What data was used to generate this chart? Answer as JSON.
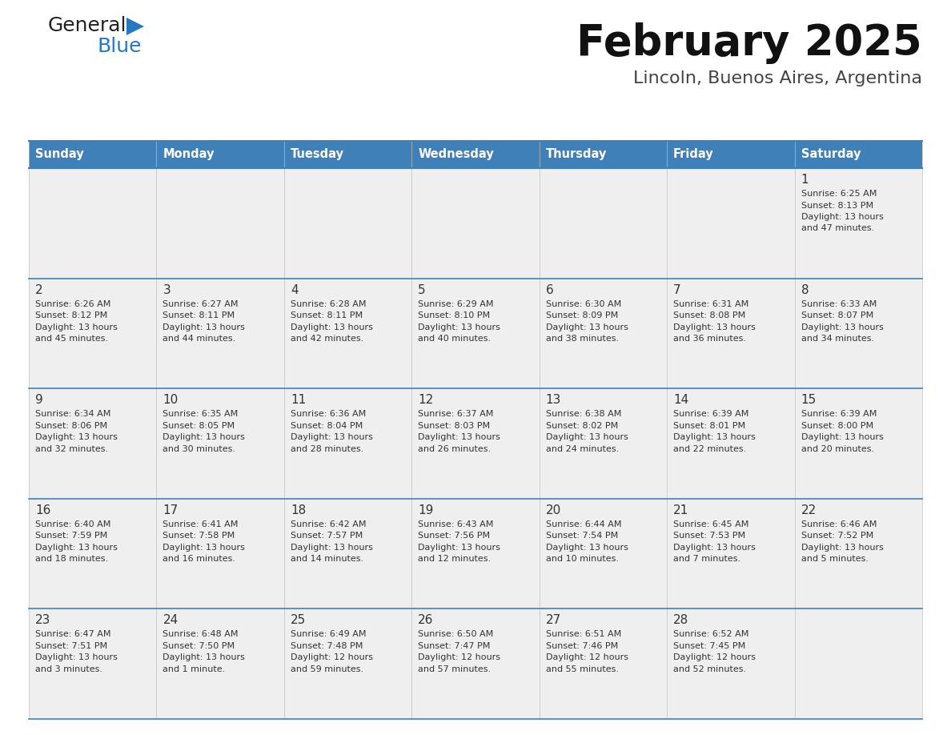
{
  "title": "February 2025",
  "subtitle": "Lincoln, Buenos Aires, Argentina",
  "header_color": "#4080b8",
  "header_text_color": "#ffffff",
  "cell_bg_light": "#efefef",
  "cell_bg_white": "#ffffff",
  "border_color": "#4080b8",
  "text_color": "#333333",
  "day_number_color": "#333333",
  "day_headers": [
    "Sunday",
    "Monday",
    "Tuesday",
    "Wednesday",
    "Thursday",
    "Friday",
    "Saturday"
  ],
  "days": [
    {
      "day": 1,
      "col": 6,
      "row": 0,
      "sunrise": "6:25 AM",
      "sunset": "8:13 PM",
      "daylight_h": "13",
      "daylight_m": "47"
    },
    {
      "day": 2,
      "col": 0,
      "row": 1,
      "sunrise": "6:26 AM",
      "sunset": "8:12 PM",
      "daylight_h": "13",
      "daylight_m": "45"
    },
    {
      "day": 3,
      "col": 1,
      "row": 1,
      "sunrise": "6:27 AM",
      "sunset": "8:11 PM",
      "daylight_h": "13",
      "daylight_m": "44"
    },
    {
      "day": 4,
      "col": 2,
      "row": 1,
      "sunrise": "6:28 AM",
      "sunset": "8:11 PM",
      "daylight_h": "13",
      "daylight_m": "42"
    },
    {
      "day": 5,
      "col": 3,
      "row": 1,
      "sunrise": "6:29 AM",
      "sunset": "8:10 PM",
      "daylight_h": "13",
      "daylight_m": "40"
    },
    {
      "day": 6,
      "col": 4,
      "row": 1,
      "sunrise": "6:30 AM",
      "sunset": "8:09 PM",
      "daylight_h": "13",
      "daylight_m": "38"
    },
    {
      "day": 7,
      "col": 5,
      "row": 1,
      "sunrise": "6:31 AM",
      "sunset": "8:08 PM",
      "daylight_h": "13",
      "daylight_m": "36"
    },
    {
      "day": 8,
      "col": 6,
      "row": 1,
      "sunrise": "6:33 AM",
      "sunset": "8:07 PM",
      "daylight_h": "13",
      "daylight_m": "34"
    },
    {
      "day": 9,
      "col": 0,
      "row": 2,
      "sunrise": "6:34 AM",
      "sunset": "8:06 PM",
      "daylight_h": "13",
      "daylight_m": "32"
    },
    {
      "day": 10,
      "col": 1,
      "row": 2,
      "sunrise": "6:35 AM",
      "sunset": "8:05 PM",
      "daylight_h": "13",
      "daylight_m": "30"
    },
    {
      "day": 11,
      "col": 2,
      "row": 2,
      "sunrise": "6:36 AM",
      "sunset": "8:04 PM",
      "daylight_h": "13",
      "daylight_m": "28"
    },
    {
      "day": 12,
      "col": 3,
      "row": 2,
      "sunrise": "6:37 AM",
      "sunset": "8:03 PM",
      "daylight_h": "13",
      "daylight_m": "26"
    },
    {
      "day": 13,
      "col": 4,
      "row": 2,
      "sunrise": "6:38 AM",
      "sunset": "8:02 PM",
      "daylight_h": "13",
      "daylight_m": "24"
    },
    {
      "day": 14,
      "col": 5,
      "row": 2,
      "sunrise": "6:39 AM",
      "sunset": "8:01 PM",
      "daylight_h": "13",
      "daylight_m": "22"
    },
    {
      "day": 15,
      "col": 6,
      "row": 2,
      "sunrise": "6:39 AM",
      "sunset": "8:00 PM",
      "daylight_h": "13",
      "daylight_m": "20"
    },
    {
      "day": 16,
      "col": 0,
      "row": 3,
      "sunrise": "6:40 AM",
      "sunset": "7:59 PM",
      "daylight_h": "13",
      "daylight_m": "18"
    },
    {
      "day": 17,
      "col": 1,
      "row": 3,
      "sunrise": "6:41 AM",
      "sunset": "7:58 PM",
      "daylight_h": "13",
      "daylight_m": "16"
    },
    {
      "day": 18,
      "col": 2,
      "row": 3,
      "sunrise": "6:42 AM",
      "sunset": "7:57 PM",
      "daylight_h": "13",
      "daylight_m": "14"
    },
    {
      "day": 19,
      "col": 3,
      "row": 3,
      "sunrise": "6:43 AM",
      "sunset": "7:56 PM",
      "daylight_h": "13",
      "daylight_m": "12"
    },
    {
      "day": 20,
      "col": 4,
      "row": 3,
      "sunrise": "6:44 AM",
      "sunset": "7:54 PM",
      "daylight_h": "13",
      "daylight_m": "10"
    },
    {
      "day": 21,
      "col": 5,
      "row": 3,
      "sunrise": "6:45 AM",
      "sunset": "7:53 PM",
      "daylight_h": "13",
      "daylight_m": "7"
    },
    {
      "day": 22,
      "col": 6,
      "row": 3,
      "sunrise": "6:46 AM",
      "sunset": "7:52 PM",
      "daylight_h": "13",
      "daylight_m": "5"
    },
    {
      "day": 23,
      "col": 0,
      "row": 4,
      "sunrise": "6:47 AM",
      "sunset": "7:51 PM",
      "daylight_h": "13",
      "daylight_m": "3"
    },
    {
      "day": 24,
      "col": 1,
      "row": 4,
      "sunrise": "6:48 AM",
      "sunset": "7:50 PM",
      "daylight_h": "13",
      "daylight_m": "1",
      "daylight_m_unit": "minute"
    },
    {
      "day": 25,
      "col": 2,
      "row": 4,
      "sunrise": "6:49 AM",
      "sunset": "7:48 PM",
      "daylight_h": "12",
      "daylight_m": "59"
    },
    {
      "day": 26,
      "col": 3,
      "row": 4,
      "sunrise": "6:50 AM",
      "sunset": "7:47 PM",
      "daylight_h": "12",
      "daylight_m": "57"
    },
    {
      "day": 27,
      "col": 4,
      "row": 4,
      "sunrise": "6:51 AM",
      "sunset": "7:46 PM",
      "daylight_h": "12",
      "daylight_m": "55"
    },
    {
      "day": 28,
      "col": 5,
      "row": 4,
      "sunrise": "6:52 AM",
      "sunset": "7:45 PM",
      "daylight_h": "12",
      "daylight_m": "52"
    }
  ],
  "logo_text1": "General",
  "logo_text2": "Blue",
  "logo_color1": "#222222",
  "logo_color2": "#2878c0",
  "logo_triangle_color": "#2878c0",
  "fig_width": 11.88,
  "fig_height": 9.18,
  "dpi": 100
}
